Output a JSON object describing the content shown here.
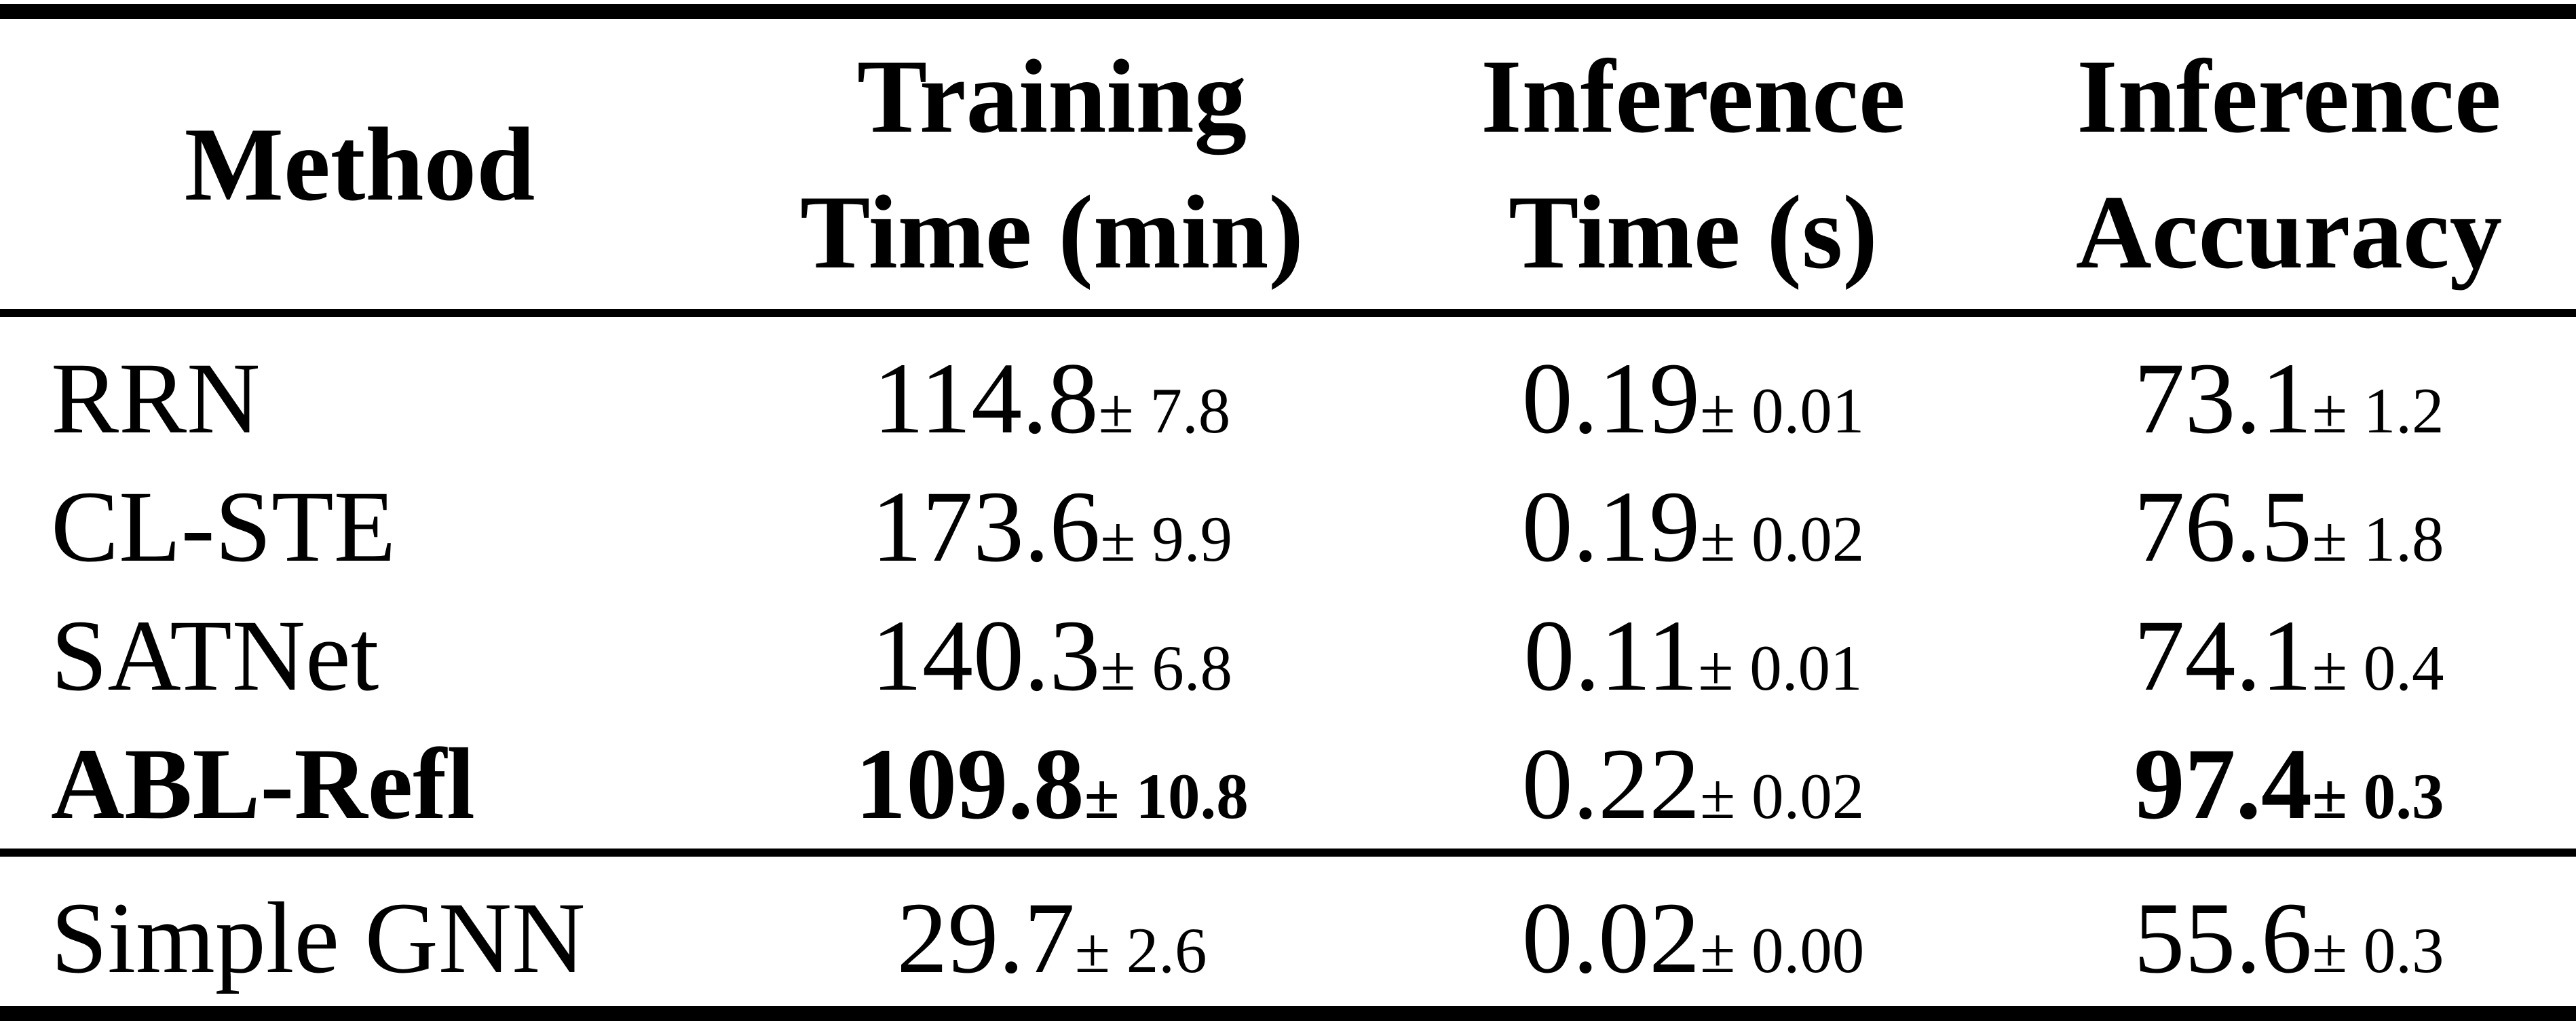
{
  "page": {
    "background_color": "#ffffff",
    "text_color": "#000000"
  },
  "table": {
    "header": {
      "method": "Method",
      "training_line1": "Training",
      "training_line2": "Time (min)",
      "inference_time_line1": "Inference",
      "inference_time_line2": "Time (s)",
      "inference_acc_line1": "Inference",
      "inference_acc_line2": "Accuracy"
    },
    "rows": [
      {
        "method": "RRN",
        "training": "114.8",
        "training_err": "± 7.8",
        "inf_time": "0.19",
        "inf_time_err": "± 0.01",
        "acc": "73.1",
        "acc_err": "± 1.2"
      },
      {
        "method": "CL-STE",
        "training": "173.6",
        "training_err": "± 9.9",
        "inf_time": "0.19",
        "inf_time_err": "± 0.02",
        "acc": "76.5",
        "acc_err": "± 1.8"
      },
      {
        "method": "SATNet",
        "training": "140.3",
        "training_err": "± 6.8",
        "inf_time": "0.11",
        "inf_time_err": "± 0.01",
        "acc": "74.1",
        "acc_err": "± 0.4"
      },
      {
        "method": "ABL-Refl",
        "training": "109.8",
        "training_err": "± 10.8",
        "inf_time": "0.22",
        "inf_time_err": "± 0.02",
        "acc": "97.4",
        "acc_err": "± 0.3"
      }
    ],
    "footer_row": {
      "method": "Simple GNN",
      "training": "29.7",
      "training_err": "± 2.6",
      "inf_time": "0.02",
      "inf_time_err": "± 0.00",
      "acc": "55.6",
      "acc_err": "± 0.3"
    }
  },
  "chart_data": {
    "type": "table",
    "title": "",
    "columns": [
      "Method",
      "Training Time (min)",
      "Inference Time (s)",
      "Inference Accuracy"
    ],
    "rows": [
      {
        "method": "RRN",
        "training_time_min": 114.8,
        "training_time_std": 7.8,
        "inference_time_s": 0.19,
        "inference_time_std": 0.01,
        "inference_accuracy": 73.1,
        "inference_accuracy_std": 1.2,
        "bold": false
      },
      {
        "method": "CL-STE",
        "training_time_min": 173.6,
        "training_time_std": 9.9,
        "inference_time_s": 0.19,
        "inference_time_std": 0.02,
        "inference_accuracy": 76.5,
        "inference_accuracy_std": 1.8,
        "bold": false
      },
      {
        "method": "SATNet",
        "training_time_min": 140.3,
        "training_time_std": 6.8,
        "inference_time_s": 0.11,
        "inference_time_std": 0.01,
        "inference_accuracy": 74.1,
        "inference_accuracy_std": 0.4,
        "bold": false
      },
      {
        "method": "ABL-Refl",
        "training_time_min": 109.8,
        "training_time_std": 10.8,
        "inference_time_s": 0.22,
        "inference_time_std": 0.02,
        "inference_accuracy": 97.4,
        "inference_accuracy_std": 0.3,
        "bold": true
      },
      {
        "method": "Simple GNN",
        "training_time_min": 29.7,
        "training_time_std": 2.6,
        "inference_time_s": 0.02,
        "inference_time_std": 0.0,
        "inference_accuracy": 55.6,
        "inference_accuracy_std": 0.3,
        "bold": false
      }
    ]
  }
}
